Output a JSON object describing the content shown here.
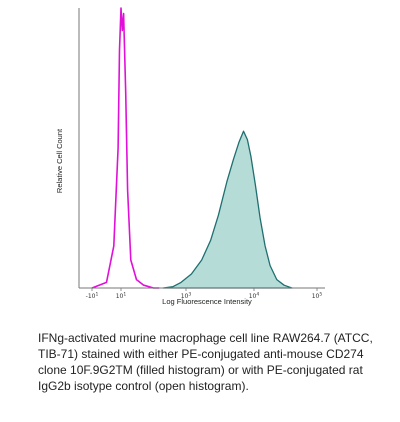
{
  "chart_data": {
    "type": "area",
    "xlabel": "Log Fluorescence Intensity",
    "ylabel": "Relative Cell Count",
    "x_scale": "biexponential",
    "xlim": [
      -10,
      100000
    ],
    "ylim": [
      0,
      1.0
    ],
    "grid": false,
    "x_ticks": [
      {
        "value": -10,
        "base": "-10",
        "exp": "1"
      },
      {
        "value": 10,
        "base": "10",
        "exp": "1"
      },
      {
        "value": 1000,
        "base": "10",
        "exp": "3"
      },
      {
        "value": 10000,
        "base": "10",
        "exp": "4"
      },
      {
        "value": 100000,
        "base": "10",
        "exp": "5"
      }
    ],
    "series": [
      {
        "name": "",
        "style": "open",
        "color": "#e010d8",
        "points": [
          [
            -10,
            0.0
          ],
          [
            0,
            0.02
          ],
          [
            5,
            0.15
          ],
          [
            8,
            0.5
          ],
          [
            9,
            0.85
          ],
          [
            10,
            1.0
          ],
          [
            11,
            0.92
          ],
          [
            12,
            0.98
          ],
          [
            14,
            0.7
          ],
          [
            16,
            0.35
          ],
          [
            20,
            0.1
          ],
          [
            30,
            0.03
          ],
          [
            50,
            0.01
          ],
          [
            100,
            0.0
          ],
          [
            150,
            0.0
          ]
        ]
      },
      {
        "name": "",
        "style": "filled",
        "color": "#1f6f70",
        "fill": "#b5dcd6",
        "points": [
          [
            200,
            0.0
          ],
          [
            400,
            0.005
          ],
          [
            700,
            0.02
          ],
          [
            1200,
            0.05
          ],
          [
            1700,
            0.1
          ],
          [
            2300,
            0.17
          ],
          [
            3000,
            0.26
          ],
          [
            4000,
            0.38
          ],
          [
            5000,
            0.46
          ],
          [
            6000,
            0.52
          ],
          [
            7000,
            0.56
          ],
          [
            8000,
            0.53
          ],
          [
            9000,
            0.47
          ],
          [
            10500,
            0.37
          ],
          [
            12500,
            0.25
          ],
          [
            15000,
            0.15
          ],
          [
            18000,
            0.08
          ],
          [
            23000,
            0.03
          ],
          [
            30000,
            0.01
          ],
          [
            40000,
            0.0
          ]
        ]
      }
    ]
  },
  "caption": "IFNg-activated murine macrophage cell line RAW264.7 (ATCC, TIB-71) stained with either PE-conjugated anti-mouse CD274 clone 10F.9G2TM (filled histogram) or with PE-conjugated rat IgG2b isotype control (open histogram)."
}
